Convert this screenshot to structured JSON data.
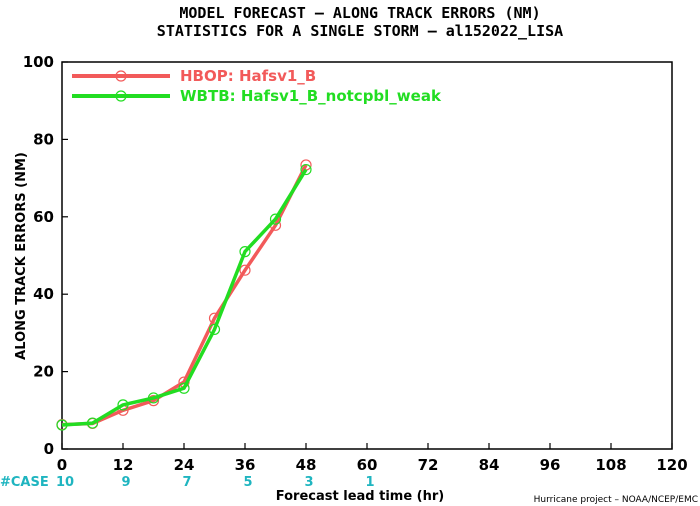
{
  "chart_data": {
    "type": "line",
    "title": "MODEL FORECAST – ALONG TRACK ERRORS (NM)",
    "subtitle": "STATISTICS FOR A SINGLE STORM – al152022_LISA",
    "xlabel": "Forecast lead time (hr)",
    "ylabel": "ALONG TRACK ERRORS (NM)",
    "xlim": [
      0,
      120
    ],
    "ylim": [
      0,
      100
    ],
    "xticks": [
      0,
      12,
      24,
      36,
      48,
      60,
      72,
      84,
      96,
      108,
      120
    ],
    "yticks": [
      0,
      20,
      40,
      60,
      80,
      100
    ],
    "grid": false,
    "legend_position": "top-left",
    "cases_label": "#CASE",
    "cases": [
      {
        "x": 0,
        "n": "10"
      },
      {
        "x": 12,
        "n": "9"
      },
      {
        "x": 24,
        "n": "7"
      },
      {
        "x": 36,
        "n": "5"
      },
      {
        "x": 48,
        "n": "3"
      },
      {
        "x": 60,
        "n": "1"
      }
    ],
    "series": [
      {
        "name": "HBOP: Hafsv1_B",
        "color": "#f25a5a",
        "x": [
          0,
          6,
          12,
          18,
          24,
          30,
          36,
          42,
          48
        ],
        "y": [
          6.3,
          6.6,
          10.0,
          12.5,
          17.3,
          33.8,
          46.2,
          57.8,
          73.4
        ]
      },
      {
        "name": "WBTB: Hafsv1_B_notcpbl_weak",
        "color": "#22dd22",
        "x": [
          0,
          6,
          12,
          18,
          24,
          30,
          36,
          42,
          48
        ],
        "y": [
          6.2,
          6.7,
          11.4,
          13.2,
          15.7,
          30.9,
          51.0,
          59.4,
          72.2
        ]
      }
    ]
  },
  "footer": {
    "credit": "Hurricane project – NOAA/NCEP/EMC"
  }
}
